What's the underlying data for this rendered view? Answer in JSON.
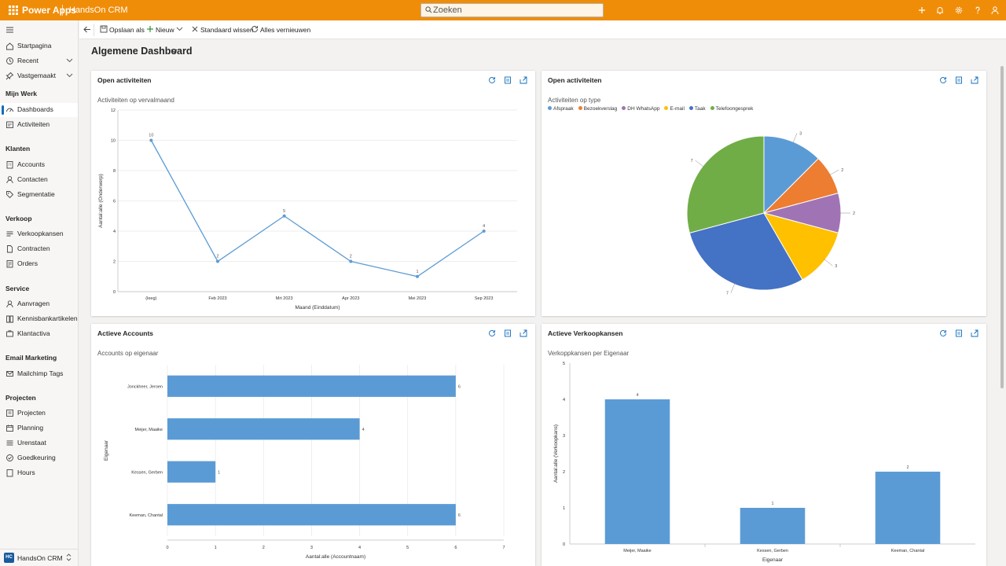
{
  "topbar": {
    "brand": "Power Apps",
    "app_name": "HandsOn CRM",
    "search_placeholder": "Zoeken"
  },
  "sidebar": {
    "top_items": [
      {
        "label": "Startpagina",
        "icon": "home-icon"
      },
      {
        "label": "Recent",
        "icon": "clock-icon"
      },
      {
        "label": "Vastgemaakt",
        "icon": "pin-icon"
      }
    ],
    "sections": [
      {
        "title": "Mijn Werk",
        "items": [
          {
            "label": "Dashboards",
            "icon": "dashboard-icon",
            "active": true
          },
          {
            "label": "Activiteiten",
            "icon": "activity-icon"
          }
        ]
      },
      {
        "title": "Klanten",
        "items": [
          {
            "label": "Accounts",
            "icon": "building-icon"
          },
          {
            "label": "Contacten",
            "icon": "person-icon"
          },
          {
            "label": "Segmentatie",
            "icon": "tag-icon"
          }
        ]
      },
      {
        "title": "Verkoop",
        "items": [
          {
            "label": "Verkoopkansen",
            "icon": "opportunity-icon"
          },
          {
            "label": "Contracten",
            "icon": "document-icon"
          },
          {
            "label": "Orders",
            "icon": "cart-icon"
          }
        ]
      },
      {
        "title": "Service",
        "items": [
          {
            "label": "Aanvragen",
            "icon": "headset-icon"
          },
          {
            "label": "Kennisbankartikelen",
            "icon": "book-icon"
          },
          {
            "label": "Klantactiva",
            "icon": "asset-icon"
          }
        ]
      },
      {
        "title": "Email Marketing",
        "items": [
          {
            "label": "Mailchimp Tags",
            "icon": "mail-tag-icon"
          }
        ]
      },
      {
        "title": "Projecten",
        "items": [
          {
            "label": "Projecten",
            "icon": "project-icon"
          },
          {
            "label": "Planning",
            "icon": "calendar-icon"
          },
          {
            "label": "Urenstaat",
            "icon": "timesheet-icon"
          },
          {
            "label": "Goedkeuring",
            "icon": "approval-icon"
          },
          {
            "label": "Hours",
            "icon": "hours-icon"
          }
        ]
      }
    ],
    "footer": {
      "badge": "HC",
      "label": "HandsOn CRM"
    }
  },
  "commandbar": {
    "save_as": "Opslaan als",
    "new": "Nieuw",
    "clear_default": "Standaard wissen",
    "refresh_all": "Alles vernieuwen"
  },
  "page": {
    "title": "Algemene Dashboard"
  },
  "panels": [
    {
      "title": "Open activiteiten",
      "subtitle": "Activiteiten op vervalmaand"
    },
    {
      "title": "Open activiteiten",
      "subtitle": "Activiteiten op type"
    },
    {
      "title": "Actieve Accounts",
      "subtitle": "Accounts op eigenaar"
    },
    {
      "title": "Actieve Verkoopkansen",
      "subtitle": "Verkoppkansen per Eigenaar"
    }
  ],
  "colors": {
    "topbar": "#f08d08",
    "accent": "#0f6cbd",
    "series": "#5b9bd5"
  },
  "chart_data": [
    {
      "type": "line",
      "title": "Activiteiten op vervalmaand",
      "categories": [
        "(leeg)",
        "Feb 2023",
        "Mrt 2023",
        "Apr 2023",
        "Mei 2023",
        "Sep 2023"
      ],
      "values": [
        10,
        2,
        5,
        2,
        1,
        4
      ],
      "xlabel": "Maand (Einddatum)",
      "ylabel": "Aantal:alle (Onderwerp)",
      "ylim": [
        0,
        12
      ],
      "yticks": [
        0,
        2,
        4,
        6,
        8,
        10,
        12
      ]
    },
    {
      "type": "pie",
      "title": "Activiteiten op type",
      "categories": [
        "Afspraak",
        "Bezoekverslag",
        "DH WhatsApp",
        "E-mail",
        "Taak",
        "Telefoongesprek"
      ],
      "values": [
        3,
        2,
        2,
        3,
        7,
        7
      ],
      "colors": [
        "#5b9bd5",
        "#ed7d31",
        "#a074b4",
        "#ffc000",
        "#4472c4",
        "#70ad47"
      ],
      "legend": "top-left"
    },
    {
      "type": "bar",
      "orientation": "horizontal",
      "title": "Accounts op eigenaar",
      "categories": [
        "Jonckheer, Jeroen",
        "Meijer, Maaike",
        "Kessen, Gerben",
        "Keeman, Chantal"
      ],
      "values": [
        6,
        4,
        1,
        6
      ],
      "xlabel": "Aantal:alle (Accountnaam)",
      "ylabel": "Eigenaar",
      "xlim": [
        0,
        7
      ],
      "xticks": [
        0,
        1,
        2,
        3,
        4,
        5,
        6,
        7
      ]
    },
    {
      "type": "bar",
      "orientation": "vertical",
      "title": "Verkoppkansen per Eigenaar",
      "categories": [
        "Meijer, Maaike",
        "Kessen, Gerben",
        "Keeman, Chantal"
      ],
      "values": [
        4,
        1,
        2
      ],
      "xlabel": "Eigenaar",
      "ylabel": "Aantal:alle (Verkoopkans)",
      "ylim": [
        0,
        5
      ],
      "yticks": [
        0,
        1,
        2,
        3,
        4,
        5
      ]
    }
  ]
}
